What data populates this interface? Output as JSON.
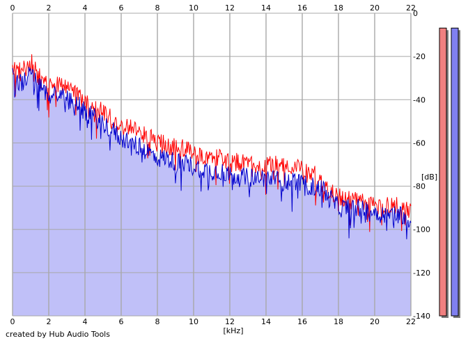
{
  "footer": {
    "credit": "created by Hub Audio Tools"
  },
  "colors": {
    "background": "#ffffff",
    "grid": "#a8a8a8",
    "area_fill": "#c0c0f8",
    "channel_a": "#ff0000",
    "channel_b": "#0000cc",
    "meter_a": "#f08080",
    "meter_b": "#8080f0",
    "meter_shadow": "#7c7c7c"
  },
  "chart_data": {
    "type": "area",
    "title": "",
    "xlabel": "[kHz]",
    "ylabel": "[dB]",
    "xlim": [
      0,
      22
    ],
    "ylim": [
      -140,
      0
    ],
    "x_ticks": [
      "0",
      "2",
      "4",
      "6",
      "8",
      "10",
      "12",
      "14",
      "16",
      "18",
      "20",
      "22"
    ],
    "y_ticks": [
      "0",
      "-20",
      "-40",
      "-60",
      "-80",
      "-100",
      "-120",
      "-140"
    ],
    "grid": true,
    "x": [
      0,
      0.5,
      1,
      1.5,
      2,
      2.5,
      3,
      3.5,
      4,
      4.5,
      5,
      5.5,
      6,
      6.5,
      7,
      7.5,
      8,
      8.5,
      9,
      9.5,
      10,
      10.5,
      11,
      11.5,
      12,
      12.5,
      13,
      13.5,
      14,
      14.5,
      15,
      15.5,
      16,
      16.5,
      17,
      17.5,
      18,
      18.5,
      19,
      19.5,
      20,
      20.5,
      21,
      21.5,
      22
    ],
    "series": [
      {
        "values": [
          -24,
          -28,
          -22,
          -30,
          -34,
          -32,
          -34,
          -36,
          -42,
          -44,
          -46,
          -49,
          -52,
          -53,
          -55,
          -57,
          -60,
          -61,
          -62,
          -62,
          -65,
          -66,
          -67,
          -67,
          -68,
          -69,
          -70,
          -70,
          -70,
          -70,
          -71,
          -71,
          -72,
          -73,
          -78,
          -82,
          -85,
          -86,
          -87,
          -88,
          -89,
          -89,
          -89,
          -90,
          -91
        ]
      },
      {
        "values": [
          -27,
          -33,
          -28,
          -34,
          -38,
          -37,
          -40,
          -41,
          -46,
          -48,
          -51,
          -54,
          -58,
          -59,
          -62,
          -64,
          -67,
          -67,
          -69,
          -69,
          -71,
          -72,
          -73,
          -73,
          -75,
          -76,
          -76,
          -76,
          -76,
          -77,
          -78,
          -77,
          -79,
          -80,
          -81,
          -85,
          -90,
          -90,
          -90,
          -91,
          -92,
          -93,
          -93,
          -93,
          -96
        ]
      }
    ]
  },
  "level_meters": {
    "values_db": [
      -3,
      -3
    ]
  }
}
